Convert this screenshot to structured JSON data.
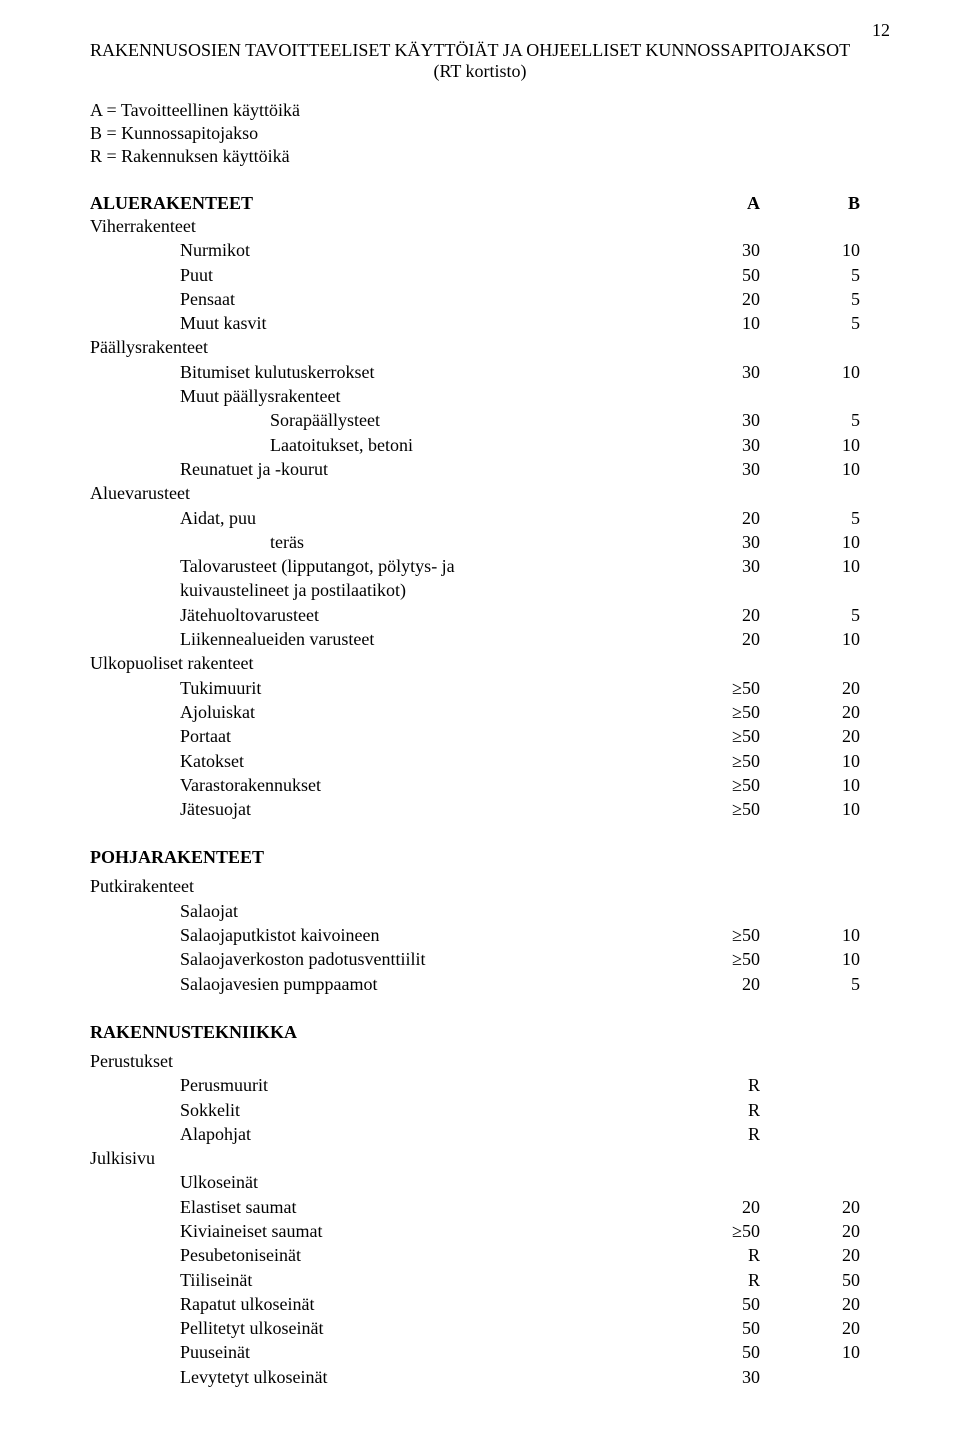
{
  "page_number": "12",
  "title_line1": "RAKENNUSOSIEN TAVOITTEELISET KÄYTTÖIÄT JA OHJEELLISET KUNNOSSAPITOJAKSOT",
  "title_line2": "(RT kortisto)",
  "legend": {
    "a": "A = Tavoitteellinen käyttöikä",
    "b": "B = Kunnossapitojakso",
    "r": "R = Rakennuksen käyttöikä"
  },
  "aluerakenteet": {
    "heading": "ALUERAKENTEET",
    "colA": "A",
    "colB": "B",
    "groups": [
      {
        "label": "Viherrakenteet",
        "indent": 0
      },
      {
        "label": "Nurmikot",
        "indent": 1,
        "a": "30",
        "b": "10"
      },
      {
        "label": "Puut",
        "indent": 1,
        "a": "50",
        "b": "5"
      },
      {
        "label": "Pensaat",
        "indent": 1,
        "a": "20",
        "b": "5"
      },
      {
        "label": "Muut kasvit",
        "indent": 1,
        "a": "10",
        "b": "5"
      },
      {
        "label": "Päällysrakenteet",
        "indent": 0
      },
      {
        "label": "Bitumiset kulutuskerrokset",
        "indent": 1,
        "a": "30",
        "b": "10"
      },
      {
        "label": "Muut päällysrakenteet",
        "indent": 1
      },
      {
        "label": "Sorapäällysteet",
        "indent": 2,
        "a": "30",
        "b": "5"
      },
      {
        "label": "Laatoitukset, betoni",
        "indent": 2,
        "a": "30",
        "b": "10"
      },
      {
        "label": "Reunatuet ja -kourut",
        "indent": 1,
        "a": "30",
        "b": "10"
      },
      {
        "label": "Aluevarusteet",
        "indent": 0
      },
      {
        "label": "Aidat, puu",
        "indent": 1,
        "a": "20",
        "b": "5"
      },
      {
        "label": "teräs",
        "indent": 2,
        "a": "30",
        "b": "10"
      },
      {
        "label": "Talovarusteet (lipputangot, pölytys- ja\nkuivaustelineet ja postilaatikot)",
        "indent": 1,
        "a": "30",
        "b": "10",
        "wrap": true
      },
      {
        "label": "Jätehuoltovarusteet",
        "indent": 1,
        "a": "20",
        "b": "5"
      },
      {
        "label": "Liikennealueiden varusteet",
        "indent": 1,
        "a": "20",
        "b": "10"
      },
      {
        "label": "Ulkopuoliset rakenteet",
        "indent": 0
      },
      {
        "label": "Tukimuurit",
        "indent": 1,
        "a": "≥50",
        "b": "20"
      },
      {
        "label": "Ajoluiskat",
        "indent": 1,
        "a": "≥50",
        "b": "20"
      },
      {
        "label": "Portaat",
        "indent": 1,
        "a": "≥50",
        "b": "20"
      },
      {
        "label": "Katokset",
        "indent": 1,
        "a": "≥50",
        "b": "10"
      },
      {
        "label": "Varastorakennukset",
        "indent": 1,
        "a": "≥50",
        "b": "10"
      },
      {
        "label": "Jätesuojat",
        "indent": 1,
        "a": "≥50",
        "b": "10"
      }
    ]
  },
  "pohjarakenteet": {
    "heading": "POHJARAKENTEET",
    "rows": [
      {
        "label": "Putkirakenteet",
        "indent": 0
      },
      {
        "label": "Salaojat",
        "indent": 1
      },
      {
        "label": "Salaojaputkistot kaivoineen",
        "indent": 1,
        "a": "≥50",
        "b": "10"
      },
      {
        "label": "Salaojaverkoston padotusventtiilit",
        "indent": 1,
        "a": "≥50",
        "b": "10"
      },
      {
        "label": "Salaojavesien pumppaamot",
        "indent": 1,
        "a": "20",
        "b": "5"
      }
    ]
  },
  "rakennustekniikka": {
    "heading": "RAKENNUSTEKNIIKKA",
    "rows": [
      {
        "label": "Perustukset",
        "indent": 0
      },
      {
        "label": "Perusmuurit",
        "indent": 1,
        "a": "R"
      },
      {
        "label": "Sokkelit",
        "indent": 1,
        "a": "R"
      },
      {
        "label": "Alapohjat",
        "indent": 1,
        "a": "R"
      },
      {
        "label": "Julkisivu",
        "indent": 0
      },
      {
        "label": "Ulkoseinät",
        "indent": 1
      },
      {
        "label": "Elastiset saumat",
        "indent": 1,
        "a": "20",
        "b": "20"
      },
      {
        "label": "Kiviaineiset saumat",
        "indent": 1,
        "a": "≥50",
        "b": "20"
      },
      {
        "label": "Pesubetoniseinät",
        "indent": 1,
        "a": "R",
        "b": "20"
      },
      {
        "label": "Tiiliseinät",
        "indent": 1,
        "a": "R",
        "b": "50"
      },
      {
        "label": "Rapatut ulkoseinät",
        "indent": 1,
        "a": "50",
        "b": "20"
      },
      {
        "label": "Pellitetyt ulkoseinät",
        "indent": 1,
        "a": "50",
        "b": "20"
      },
      {
        "label": "Puuseinät",
        "indent": 1,
        "a": "50",
        "b": "10"
      },
      {
        "label": "Levytetyt ulkoseinät",
        "indent": 1,
        "a": "30"
      }
    ]
  }
}
